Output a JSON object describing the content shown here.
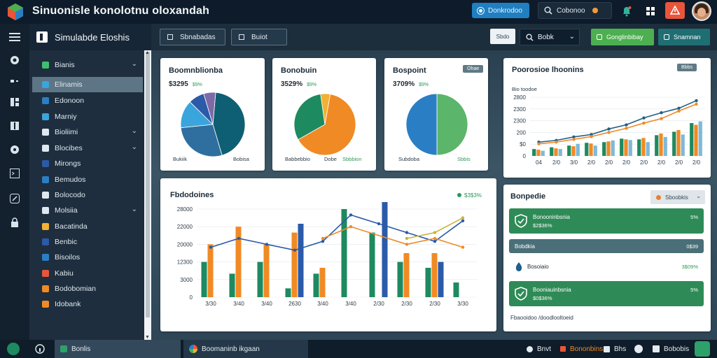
{
  "colors": {
    "teal_dark": "#0f5f74",
    "blue": "#2a7fc4",
    "sky": "#3aa5dc",
    "green": "#4caf50",
    "green_dark": "#1e8a5f",
    "orange": "#f08a24",
    "yellow": "#f2b133",
    "navy": "#2b5aa8",
    "purple": "#7d6aa6",
    "accent_red": "#e8553b"
  },
  "topbar": {
    "title": "Sinuonisle konolotnu oloxandah",
    "primary_button": "Donkrodoo",
    "search_value": "Cobonoo",
    "icons": [
      "app-logo-icon",
      "bell-icon",
      "apps-icon",
      "alert-icon",
      "user-avatar"
    ]
  },
  "sidebar": {
    "title": "Simulabde Eloshis",
    "items": [
      {
        "label": "Bianis",
        "icon": "leaf-icon",
        "color": "#3fbf6e",
        "expandable": true
      },
      {
        "label": "Elinamis",
        "icon": "list-icon",
        "color": "#3aa5dc",
        "expandable": false,
        "active": true
      },
      {
        "label": "Edonoon",
        "icon": "flag-icon",
        "color": "#2a7fc4",
        "expandable": false
      },
      {
        "label": "Marniy",
        "icon": "mountain-icon",
        "color": "#3aa5dc",
        "expandable": false
      },
      {
        "label": "Bioliimi",
        "icon": "doc-icon",
        "color": "#dfe8ee",
        "expandable": true
      },
      {
        "label": "Blocibes",
        "icon": "window-icon",
        "color": "#dfe8ee",
        "expandable": true
      },
      {
        "label": "Mirongs",
        "icon": "bar-icon",
        "color": "#2b5aa8",
        "expandable": false
      },
      {
        "label": "Bemudos",
        "icon": "square-icon",
        "color": "#2a7fc4",
        "expandable": false
      },
      {
        "label": "Bolocodo",
        "icon": "bolt-icon",
        "color": "#dfe8ee",
        "expandable": false
      },
      {
        "label": "Molsiia",
        "icon": "grid-icon",
        "color": "#dfe8ee",
        "expandable": true
      },
      {
        "label": "Bacatinda",
        "icon": "folder-icon",
        "color": "#f2b133",
        "expandable": false
      },
      {
        "label": "Benbic",
        "icon": "square-icon",
        "color": "#2b5aa8",
        "expandable": false
      },
      {
        "label": "Bisoilos",
        "icon": "square-icon",
        "color": "#2a7fc4",
        "expandable": false
      },
      {
        "label": "Kabiu",
        "icon": "square-icon",
        "color": "#e8553b",
        "expandable": false
      },
      {
        "label": "Bodobomian",
        "icon": "square-icon",
        "color": "#f08a24",
        "expandable": false
      },
      {
        "label": "Idobank",
        "icon": "square-icon",
        "color": "#f08a24",
        "expandable": false
      }
    ]
  },
  "toolbar": {
    "btn1": "Sbnabadas",
    "btn2": "Buiot",
    "small_white": "Sbdo",
    "select_value": "Bobk",
    "green_btn": "Gonglinbibay",
    "teal_btn": "Snamnan"
  },
  "cards": {
    "pie1": {
      "title": "Boomnblionba",
      "value": "$3295",
      "sub": "$9%",
      "legend_left": "Bukiik",
      "legend_right": "Bobisa"
    },
    "pie2": {
      "title": "Bonobuin",
      "value": "3529%",
      "sub": "$9%",
      "legend_left": "Babbebbio",
      "legend_mid": "Dobe",
      "legend_right": "Sbbbion"
    },
    "pie3": {
      "title": "Bospoint",
      "value": "3709%",
      "sub": "$9%",
      "badge": "Ohae",
      "legend_left": "Subdoba",
      "legend_right": "Sbbis"
    },
    "perf": {
      "title": "Poorosioe lhoonins",
      "badge": "Bbbs",
      "sub_label": "Bio toodoe"
    },
    "main": {
      "title": "Fbdodoines",
      "legend": "$3$3%"
    },
    "right": {
      "title": "Bonpedie",
      "dropdown": "Sboobkis",
      "rows": [
        {
          "title": "Bonooninbsnia",
          "sub": "$2$36%",
          "value": "5%"
        },
        {
          "title": "Bobdkia",
          "sub": "",
          "value": "0$39"
        },
        {
          "title": "Bosoiaio",
          "sub": "",
          "value": "3$09%"
        },
        {
          "title": "Booniauinbsnia",
          "sub": "$0$36%",
          "value": "5%"
        }
      ],
      "footer": "Fbaooidoo /doodlooltoeid"
    }
  },
  "bottombar": {
    "left_label": "Bonlis",
    "center_label": "Boomaninb ikgaan",
    "items": [
      "Bnvt",
      "Bononbins",
      "Bhs",
      "Boooin",
      "Bobobis"
    ]
  },
  "chart_data": [
    {
      "type": "pie",
      "slices": [
        {
          "label": "Bukiik",
          "value": 44,
          "color": "#0f5f74"
        },
        {
          "label": "Bobisa",
          "value": 28,
          "color": "#2f6f9f"
        },
        {
          "label": "",
          "value": 14,
          "color": "#3aa5dc"
        },
        {
          "label": "",
          "value": 8,
          "color": "#2b5aa8"
        },
        {
          "label": "",
          "value": 6,
          "color": "#7d6aa6"
        }
      ]
    },
    {
      "type": "pie",
      "slices": [
        {
          "label": "Babbebbio",
          "value": 64,
          "color": "#f08a24"
        },
        {
          "label": "Sbbbion",
          "value": 31,
          "color": "#1e8a5f"
        },
        {
          "label": "Dobe",
          "value": 5,
          "color": "#f2b133"
        }
      ]
    },
    {
      "type": "pie",
      "slices": [
        {
          "label": "Sbbis",
          "value": 50,
          "color": "#5bb56a"
        },
        {
          "label": "Subdoba",
          "value": 50,
          "color": "#2a7fc4"
        }
      ]
    },
    {
      "type": "bar",
      "ylabel": "",
      "yticks": [
        "0",
        "$0",
        "200",
        "2300",
        "2300",
        "2800"
      ],
      "categories": [
        "04",
        "2/0",
        "3/0",
        "2/0",
        "2/0",
        "2/0",
        "2/0",
        "2/0",
        "2/0",
        "2/0"
      ],
      "series": [
        {
          "values": [
            20,
            25,
            30,
            38,
            40,
            50,
            48,
            60,
            70,
            95
          ],
          "color": "#1e8a5f"
        },
        {
          "values": [
            18,
            22,
            28,
            36,
            42,
            48,
            52,
            65,
            75,
            90
          ],
          "color": "#f08a24"
        },
        {
          "values": [
            15,
            20,
            35,
            30,
            45,
            46,
            40,
            55,
            62,
            100
          ],
          "color": "#7fb9d6"
        }
      ],
      "lines": [
        {
          "values": [
            40,
            45,
            55,
            62,
            78,
            90,
            110,
            125,
            138,
            160
          ],
          "color": "#1f5f8b"
        },
        {
          "values": [
            35,
            40,
            48,
            56,
            68,
            80,
            95,
            108,
            130,
            150
          ],
          "color": "#f08a24"
        }
      ]
    },
    {
      "type": "bar",
      "yticks": [
        "0",
        "3000",
        "12300",
        "20000",
        "22000",
        "28000"
      ],
      "categories": [
        "3/30",
        "3/40",
        "3/40",
        "2630",
        "3/40",
        "3/40",
        "2/30",
        "2/30",
        "2/30",
        "3/30"
      ],
      "series": [
        {
          "values": [
            12,
            8,
            12,
            3,
            8,
            30,
            22,
            12,
            10,
            5
          ],
          "color": "#1e8a5f"
        },
        {
          "values": [
            18,
            24,
            18,
            22,
            10,
            0,
            0,
            15,
            15,
            0
          ],
          "color": "#f08a24"
        },
        {
          "values": [
            0,
            0,
            0,
            25,
            0,
            0,
            40,
            0,
            12,
            0
          ],
          "color": "#2b5aa8"
        }
      ],
      "lines": [
        {
          "values": [
            17,
            20,
            18,
            16,
            19,
            28,
            25,
            22,
            19,
            26
          ],
          "color": "#2b5aa8"
        },
        {
          "values": [
            0,
            0,
            0,
            0,
            20,
            24,
            0,
            18,
            20,
            17
          ],
          "color": "#f08a24"
        },
        {
          "values": [
            0,
            0,
            0,
            0,
            0,
            0,
            0,
            20,
            22,
            27
          ],
          "color": "#c9b23a"
        }
      ]
    }
  ]
}
